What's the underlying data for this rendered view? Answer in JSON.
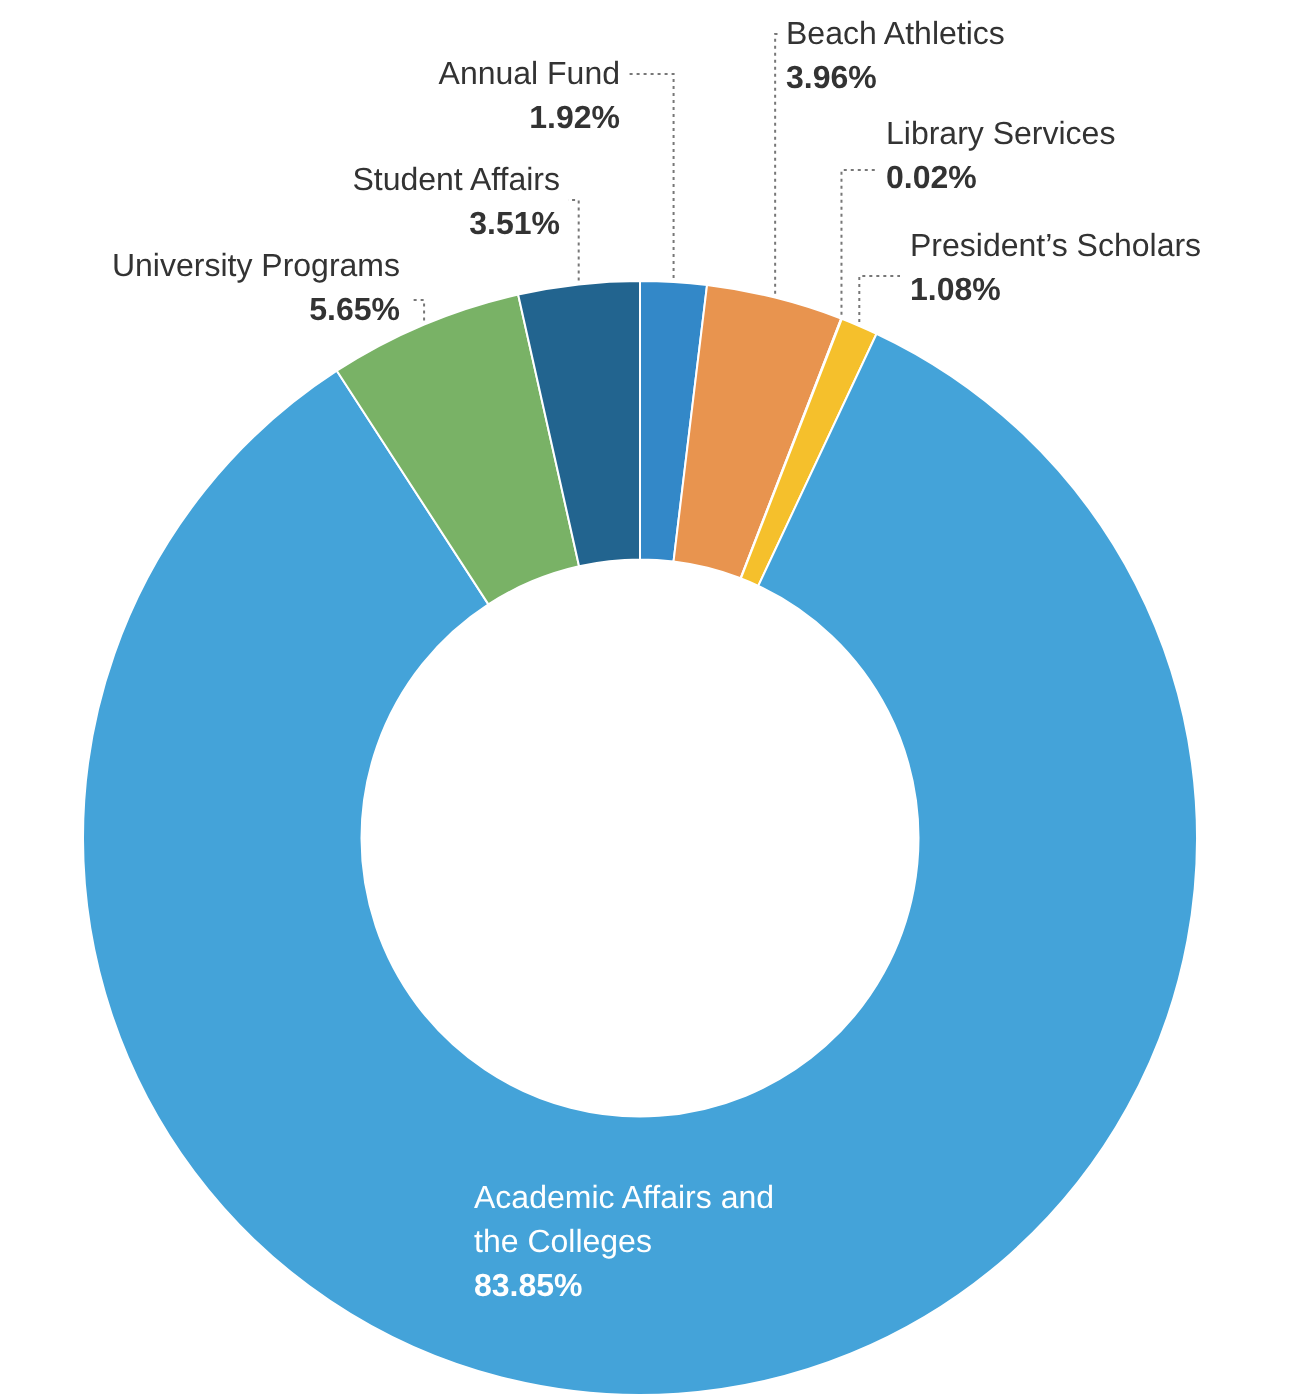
{
  "chart_data": {
    "type": "donut",
    "categories": [
      "Annual Fund",
      "Beach Athletics",
      "Library Services",
      "President’s Scholars",
      "Academic Affairs and the Colleges",
      "University Programs",
      "Student Affairs"
    ],
    "values": [
      1.92,
      3.96,
      0.02,
      1.08,
      83.85,
      5.65,
      3.51
    ],
    "value_labels": [
      "1.92%",
      "3.96%",
      "0.02%",
      "1.08%",
      "83.85%",
      "5.65%",
      "3.51%"
    ],
    "colors": [
      "#3388c8",
      "#e8944f",
      "#d42a2a",
      "#f5c02c",
      "#44a3d9",
      "#79b266",
      "#22648f"
    ],
    "legend": false
  }
}
